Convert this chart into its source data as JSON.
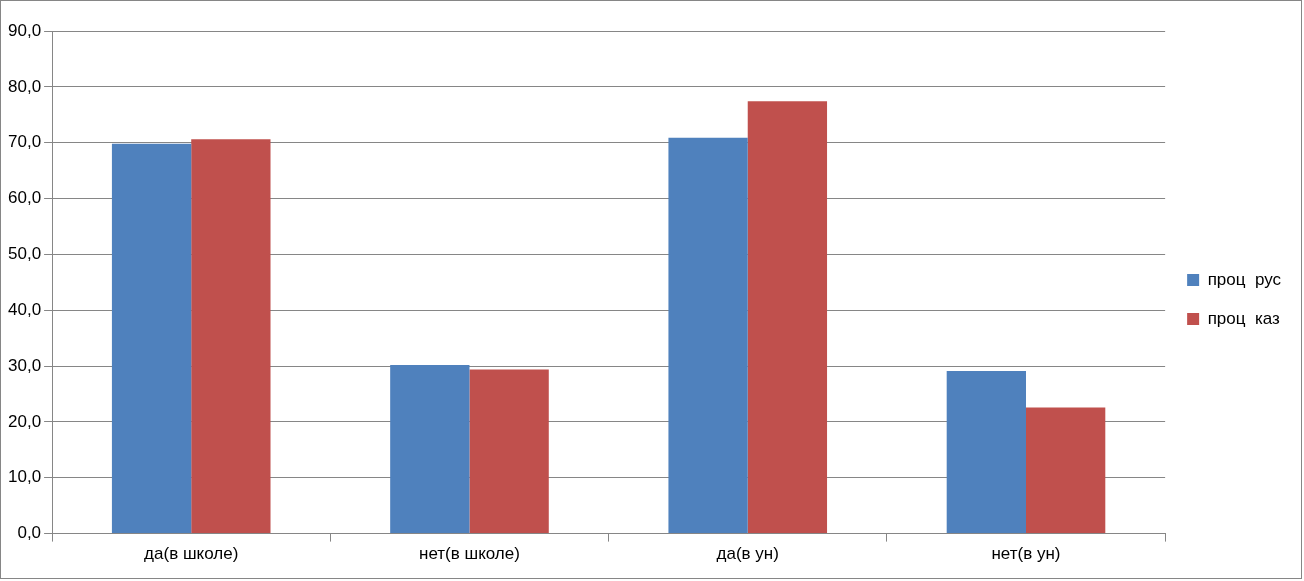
{
  "chart_data": {
    "type": "bar",
    "categories": [
      "да(в школе)",
      "нет(в школе)",
      "да(в ун)",
      "нет(в ун)"
    ],
    "series": [
      {
        "name": "проц  рус",
        "color": "#4f81bd",
        "values": [
          69.8,
          30.2,
          70.9,
          29.1
        ]
      },
      {
        "name": "проц  каз",
        "color": "#c0504d",
        "values": [
          70.6,
          29.4,
          77.4,
          22.6
        ]
      }
    ],
    "ylim": [
      0,
      90
    ],
    "yticks": [
      {
        "value": 0,
        "label": "0,0"
      },
      {
        "value": 10,
        "label": "10,0"
      },
      {
        "value": 20,
        "label": "20,0"
      },
      {
        "value": 30,
        "label": "30,0"
      },
      {
        "value": 40,
        "label": "40,0"
      },
      {
        "value": 50,
        "label": "50,0"
      },
      {
        "value": 60,
        "label": "60,0"
      },
      {
        "value": 70,
        "label": "70,0"
      },
      {
        "value": 80,
        "label": "80,0"
      },
      {
        "value": 90,
        "label": "90,0"
      }
    ],
    "grid": "y",
    "legend": "right"
  }
}
